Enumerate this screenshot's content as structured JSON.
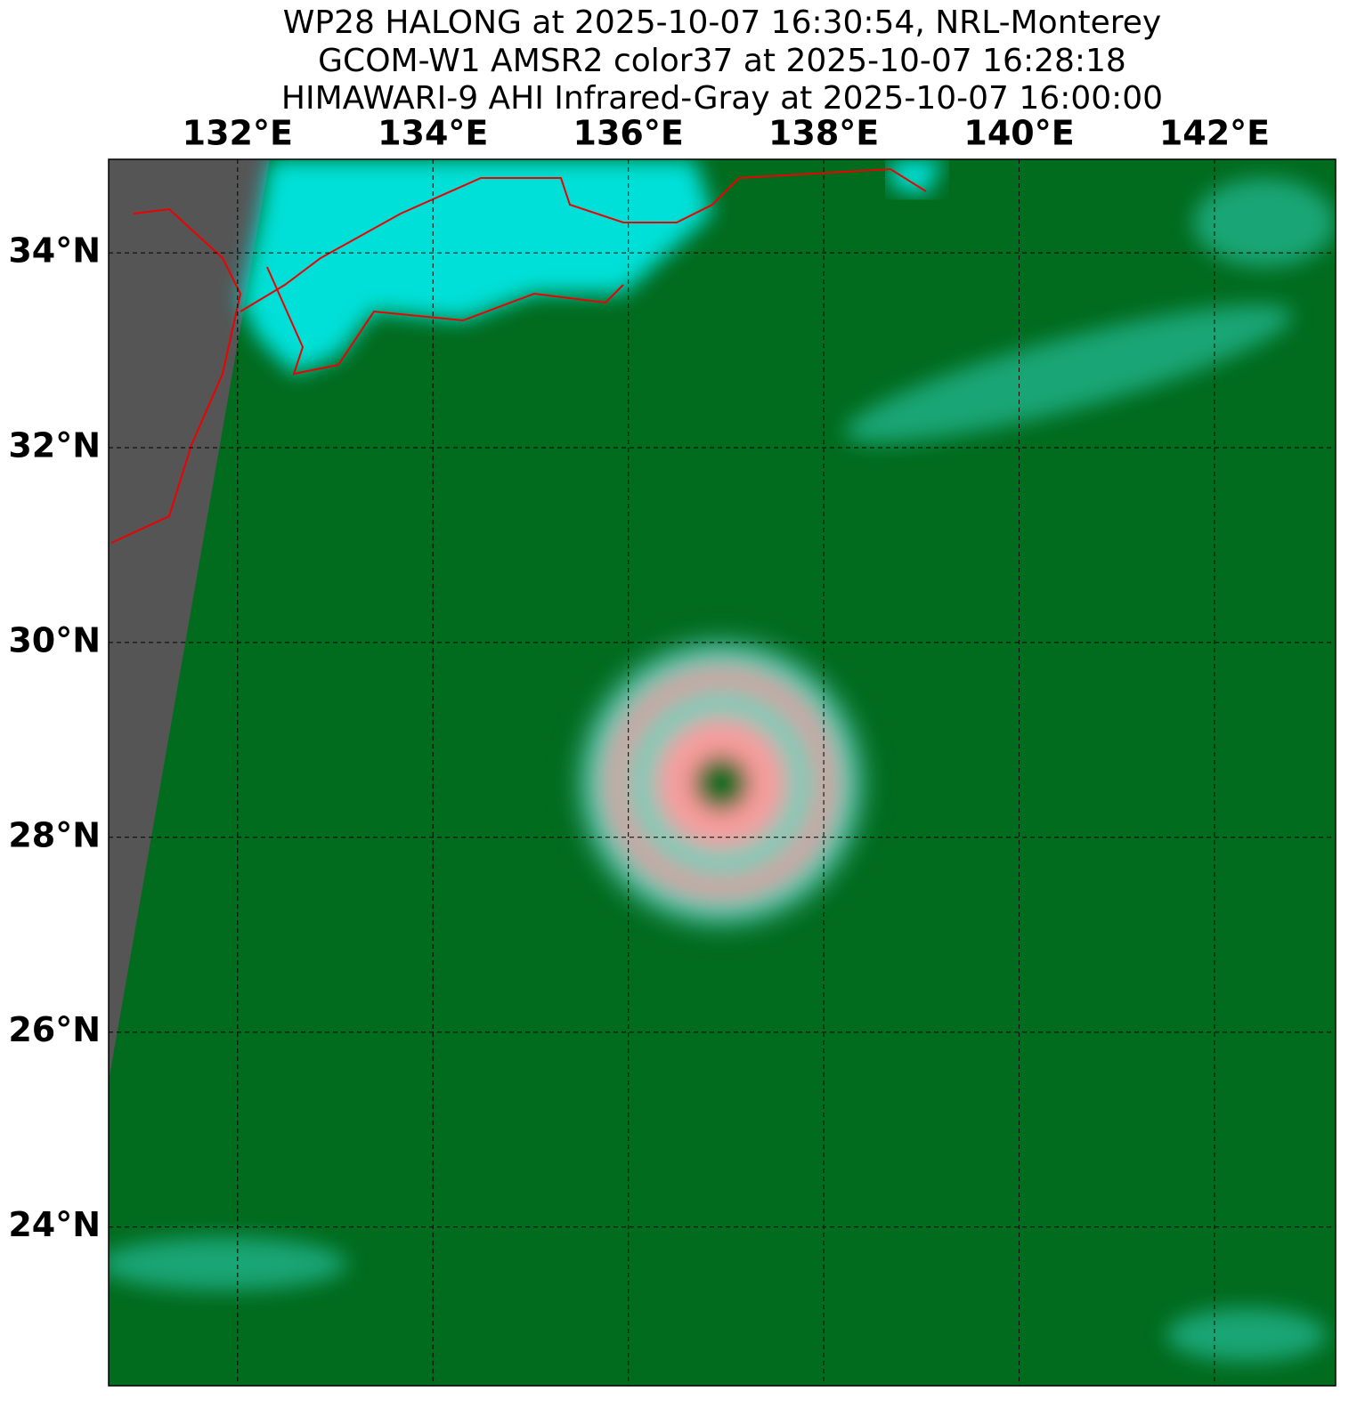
{
  "chart_data": {
    "type": "map",
    "title_lines": [
      "WP28 HALONG at 2025-10-07 16:30:54, NRL-Monterey",
      "GCOM-W1 AMSR2 color37 at 2025-10-07 16:28:18",
      "HIMAWARI-9 AHI Infrared-Gray at 2025-10-07 16:00:00"
    ],
    "xlim": [
      130.68,
      143.24
    ],
    "ylim": [
      22.37,
      34.96
    ],
    "xticks": [
      {
        "value": 132,
        "label": "132°E"
      },
      {
        "value": 134,
        "label": "134°E"
      },
      {
        "value": 136,
        "label": "136°E"
      },
      {
        "value": 138,
        "label": "138°E"
      },
      {
        "value": 140,
        "label": "140°E"
      },
      {
        "value": 142,
        "label": "142°E"
      }
    ],
    "yticks": [
      {
        "value": 34,
        "label": "34°N"
      },
      {
        "value": 32,
        "label": "32°N"
      },
      {
        "value": 30,
        "label": "30°N"
      },
      {
        "value": 28,
        "label": "28°N"
      },
      {
        "value": 26,
        "label": "26°N"
      },
      {
        "value": 24,
        "label": "24°N"
      }
    ],
    "grid": true
  }
}
